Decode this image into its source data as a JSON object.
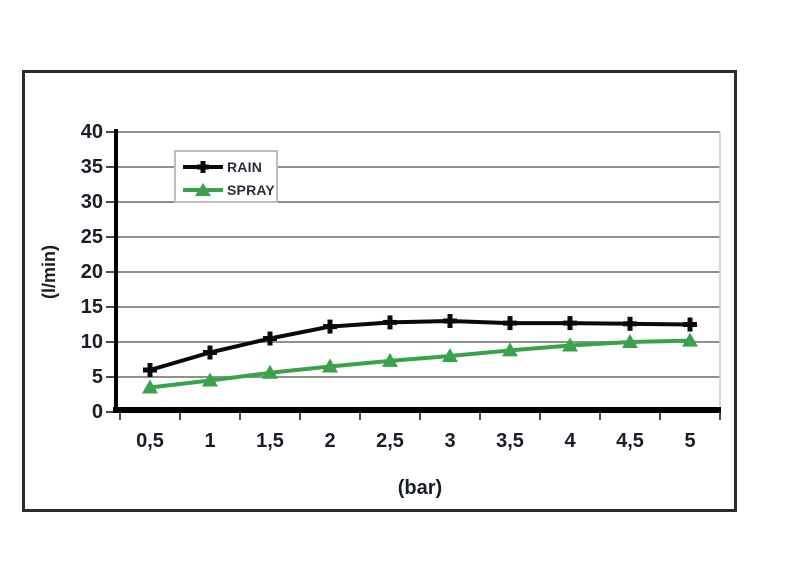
{
  "figure": {
    "background": "#ffffff",
    "frame_border_color": "#2c2c2c"
  },
  "chart_data": {
    "type": "line",
    "x": [
      0.5,
      1,
      1.5,
      2,
      2.5,
      3,
      3.5,
      4,
      4.5,
      5
    ],
    "x_tick_labels": [
      "0,5",
      "1",
      "1,5",
      "2",
      "2,5",
      "3",
      "3,5",
      "4",
      "4,5",
      "5"
    ],
    "xlabel": "(bar)",
    "ylabel": "(l/min)",
    "ylim": [
      0,
      40
    ],
    "y_ticks": [
      0,
      5,
      10,
      15,
      20,
      25,
      30,
      35,
      40
    ],
    "grid": true,
    "gridline_color": "#8f8f8f",
    "plot_border_color": "#c9c9c9",
    "axis_color": "#000000",
    "tick_color": "#4a4a4a",
    "text_color": "#191d26",
    "legend_position": "top-left",
    "series": [
      {
        "name": "RAIN",
        "color": "#0a0a0a",
        "marker": "plus",
        "values": [
          6,
          8.5,
          10.5,
          12.2,
          12.8,
          13,
          12.7,
          12.7,
          12.6,
          12.5
        ]
      },
      {
        "name": "SPRAY",
        "color": "#3aa24a",
        "marker": "triangle",
        "values": [
          3.5,
          4.5,
          5.6,
          6.5,
          7.3,
          8,
          8.8,
          9.5,
          10,
          10.2
        ]
      }
    ]
  }
}
